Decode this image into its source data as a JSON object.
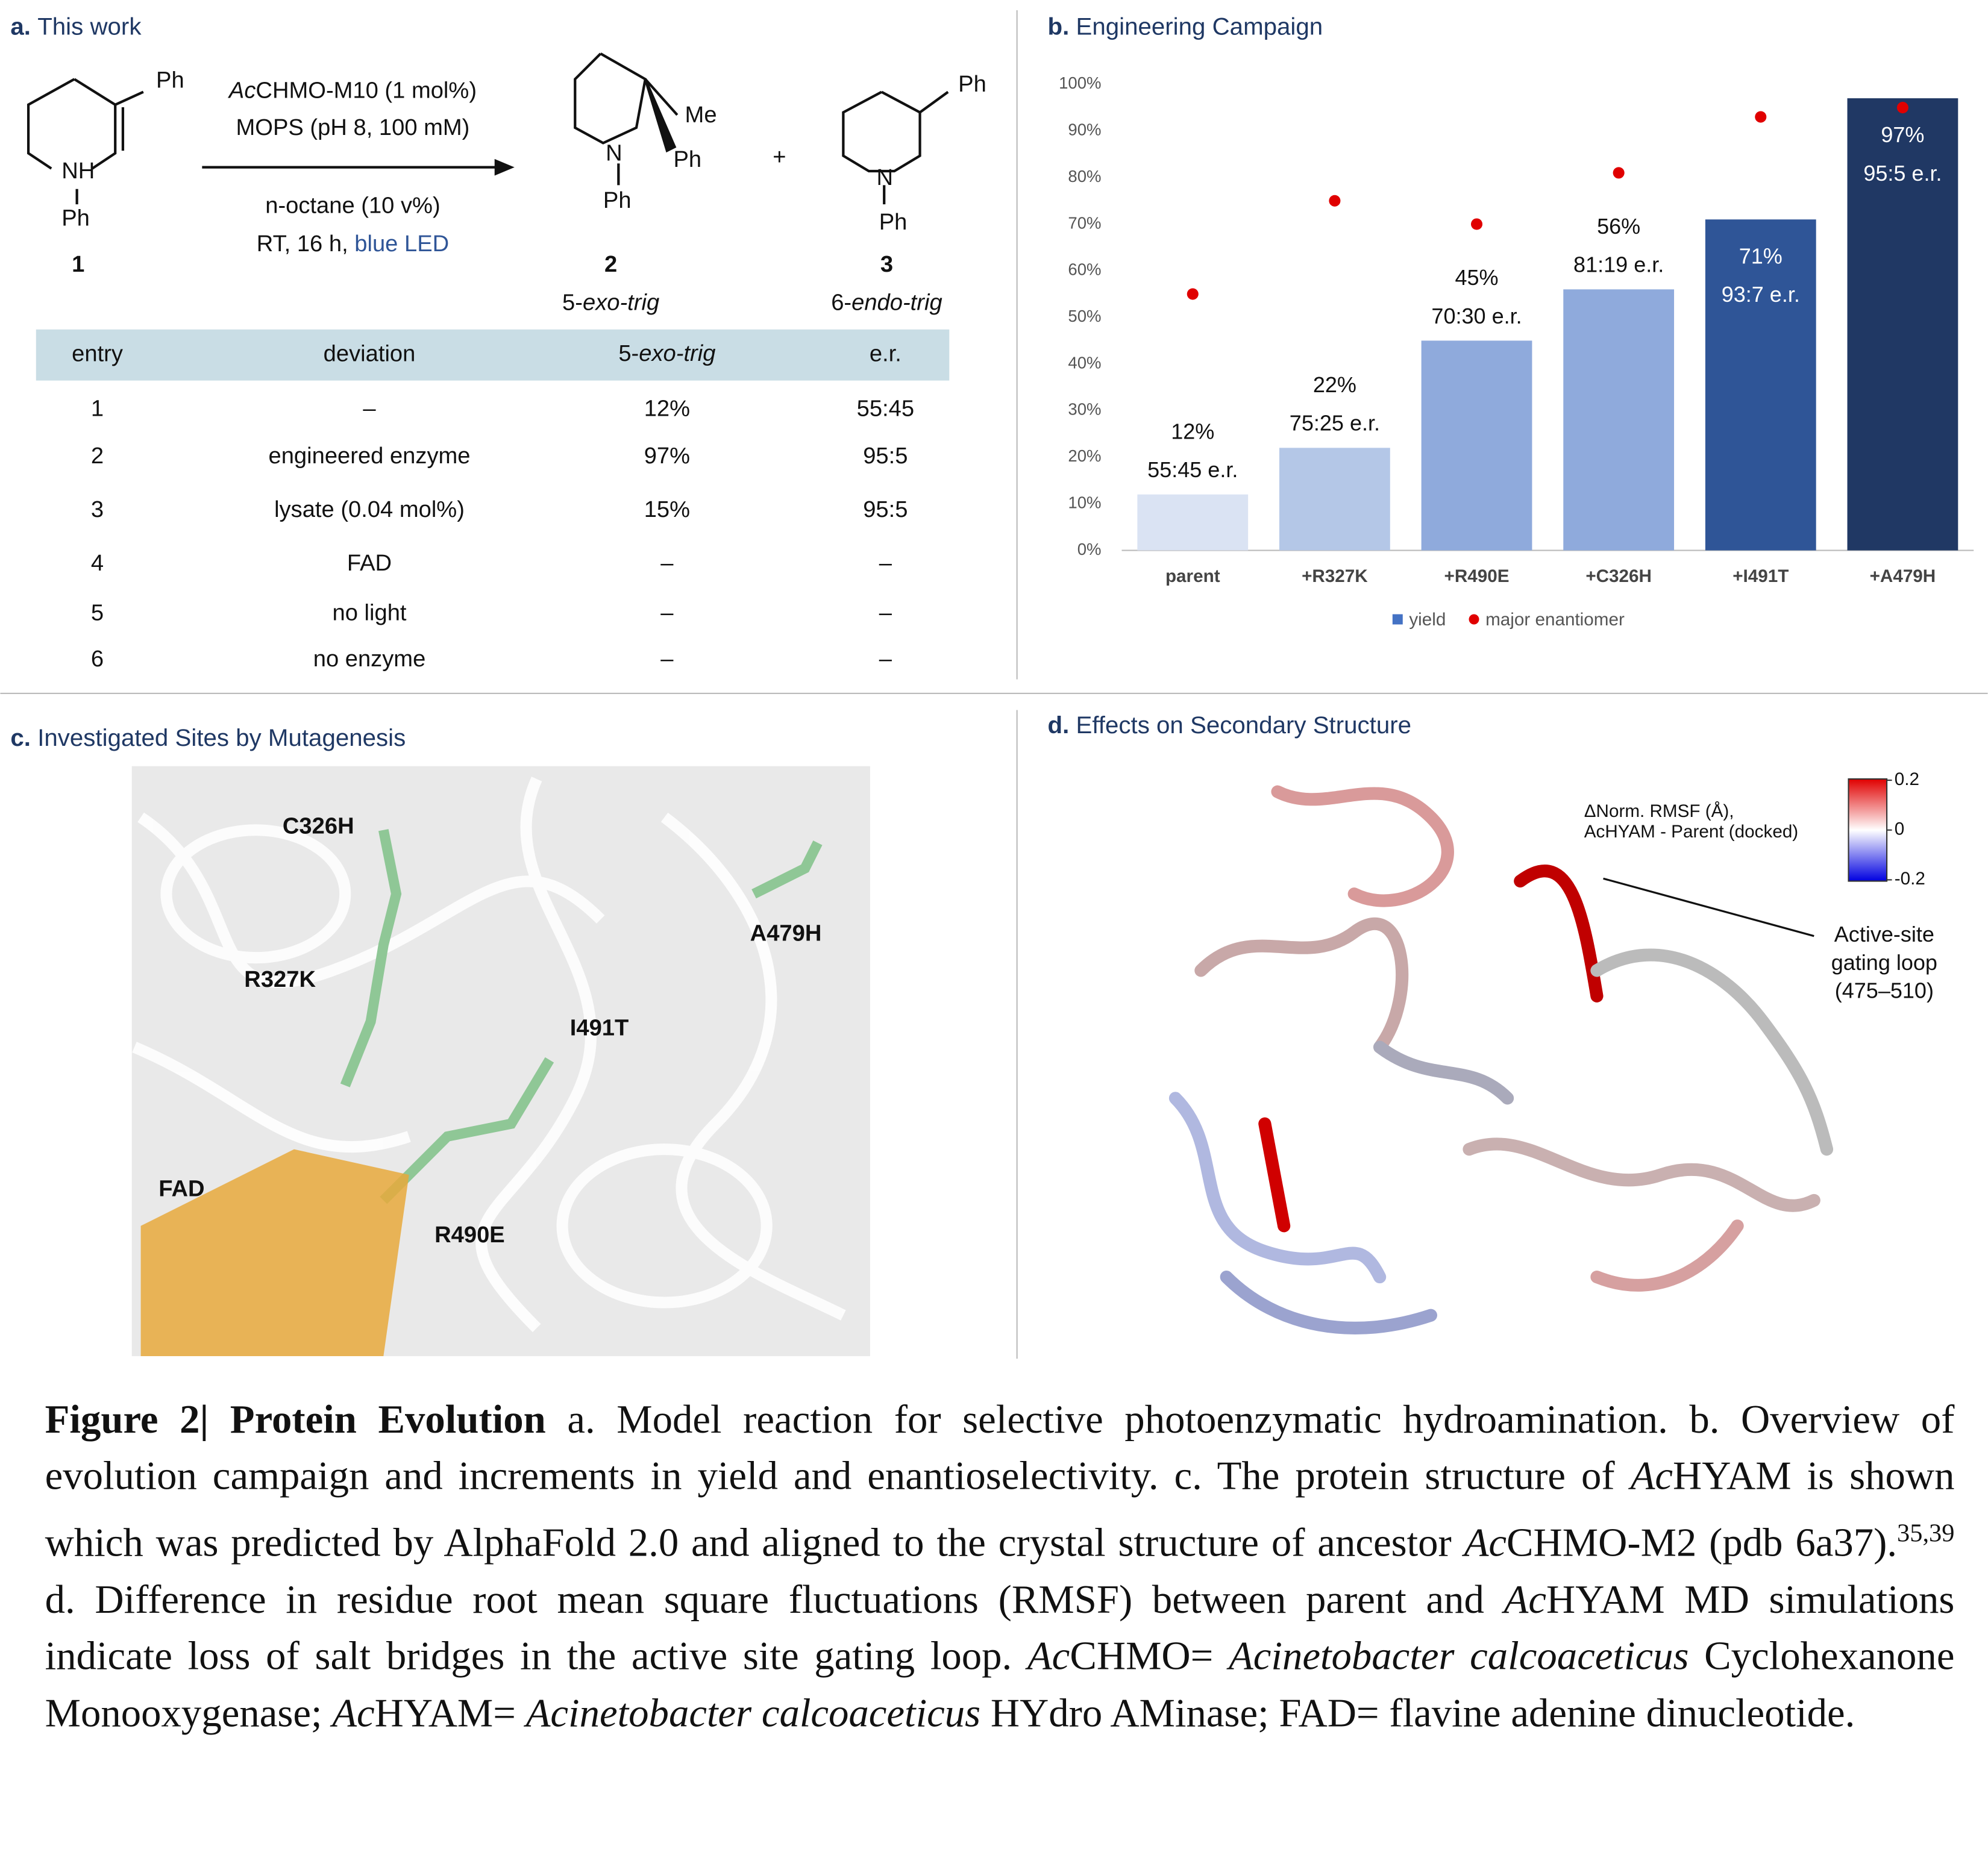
{
  "panel_a": {
    "label": "a.",
    "title": "This work",
    "reagents": {
      "line1_italic": "Ac",
      "line1": "CHMO-M10 (1 mol%)",
      "line2": "MOPS (pH 8, 100 mM)",
      "line3": "n-octane (10 v%)",
      "line4": "RT, 16 h,",
      "line4_highlight": "blue LED"
    },
    "substrate": {
      "ph": "Ph",
      "nh": "NH",
      "nph": "Ph",
      "number": "1"
    },
    "product2": {
      "me": "Me",
      "ph": "Ph",
      "n": "N",
      "nph": "Ph",
      "number": "2",
      "mode_prefix": "5-",
      "mode": "exo-trig"
    },
    "plus": "+",
    "product3": {
      "ph": "Ph",
      "n": "N",
      "nph": "Ph",
      "number": "3",
      "mode_prefix": "6-",
      "mode": "endo-trig"
    },
    "table": {
      "header": [
        "entry",
        "deviation",
        "5-",
        "exo-trig",
        "e.r."
      ],
      "rows": [
        [
          "1",
          "–",
          "12%",
          "55:45"
        ],
        [
          "2",
          "engineered enzyme",
          "97%",
          "95:5"
        ],
        [
          "3",
          "lysate (0.04 mol%)",
          "15%",
          "95:5"
        ],
        [
          "4",
          "FAD",
          "–",
          "–"
        ],
        [
          "5",
          "no light",
          "–",
          "–"
        ],
        [
          "6",
          "no enzyme",
          "–",
          "–"
        ]
      ]
    }
  },
  "chart_data": {
    "type": "bar",
    "panel_label": "b.",
    "title": "Engineering Campaign",
    "categories": [
      "parent",
      "+R327K",
      "+R490E",
      "+C326H",
      "+I491T",
      "+A479H"
    ],
    "series": [
      {
        "name": "yield",
        "color": "#4472c4",
        "colors": [
          "#dae3f3",
          "#b4c7e7",
          "#8faadc",
          "#8faadc",
          "#2f5597",
          "#203864"
        ],
        "values": [
          12,
          22,
          45,
          56,
          71,
          97
        ],
        "value_labels": [
          "12%",
          "22%",
          "45%",
          "56%",
          "71%",
          "97%"
        ]
      },
      {
        "name": "major enantiomer",
        "color": "#e00000",
        "type": "scatter",
        "values": [
          55,
          75,
          70,
          81,
          93,
          95
        ],
        "value_labels": [
          "55:45 e.r.",
          "75:25 e.r.",
          "70:30 e.r.",
          "81:19 e.r.",
          "93:7 e.r.",
          "95:5 e.r."
        ]
      }
    ],
    "ylim": [
      0,
      100
    ],
    "yticks": [
      {
        "value": 0,
        "label": "0%"
      },
      {
        "value": 10,
        "label": "10%"
      },
      {
        "value": 20,
        "label": "20%"
      },
      {
        "value": 30,
        "label": "30%"
      },
      {
        "value": 40,
        "label": "40%"
      },
      {
        "value": 50,
        "label": "50%"
      },
      {
        "value": 60,
        "label": "60%"
      },
      {
        "value": 70,
        "label": "70%"
      },
      {
        "value": 80,
        "label": "80%"
      },
      {
        "value": 90,
        "label": "90%"
      },
      {
        "value": 100,
        "label": "100%"
      }
    ],
    "grid": false,
    "legend": "bottom"
  },
  "panel_c": {
    "label": "c.",
    "title": "Investigated Sites by Mutagenesis",
    "sites": [
      "C326H",
      "R327K",
      "A479H",
      "I491T",
      "FAD",
      "R490E"
    ]
  },
  "panel_d": {
    "label": "d.",
    "title": "Effects on Secondary Structure",
    "colorbar_title": [
      "ΔNorm. RMSF (Å),",
      "AcHYAM - Parent (docked)"
    ],
    "colorbar_ticks": [
      0.2,
      0,
      -0.2
    ],
    "annotation": [
      "Active-site",
      "gating loop",
      "(475–510)"
    ]
  },
  "caption": {
    "parts": [
      "Figure 2| Protein Evolution",
      " a. Model reaction for selective photoenzymatic hydroamination. b. Overview of evolution campaign and increments in yield and enantioselectivity. c. The protein structure of ",
      "Ac",
      "HYAM is shown which was predicted by AlphaFold 2.0 and aligned to the crystal structure of ancestor ",
      "Ac",
      "CHMO-M2 (pdb 6a37).",
      "35,39",
      " d. Difference in residue root mean square fluctuations (RMSF) between parent and ",
      "Ac",
      "HYAM MD simulations indicate loss of salt bridges in the active site gating loop. ",
      "Ac",
      "CHMO= ",
      "Acinetobacter calcoaceticus",
      " Cyclohexanone Monooxygenase; ",
      "Ac",
      "HYAM= ",
      "Acinetobacter calcoaceticus",
      " HYdro AMinase; FAD= flavine adenine dinucleotide."
    ]
  }
}
